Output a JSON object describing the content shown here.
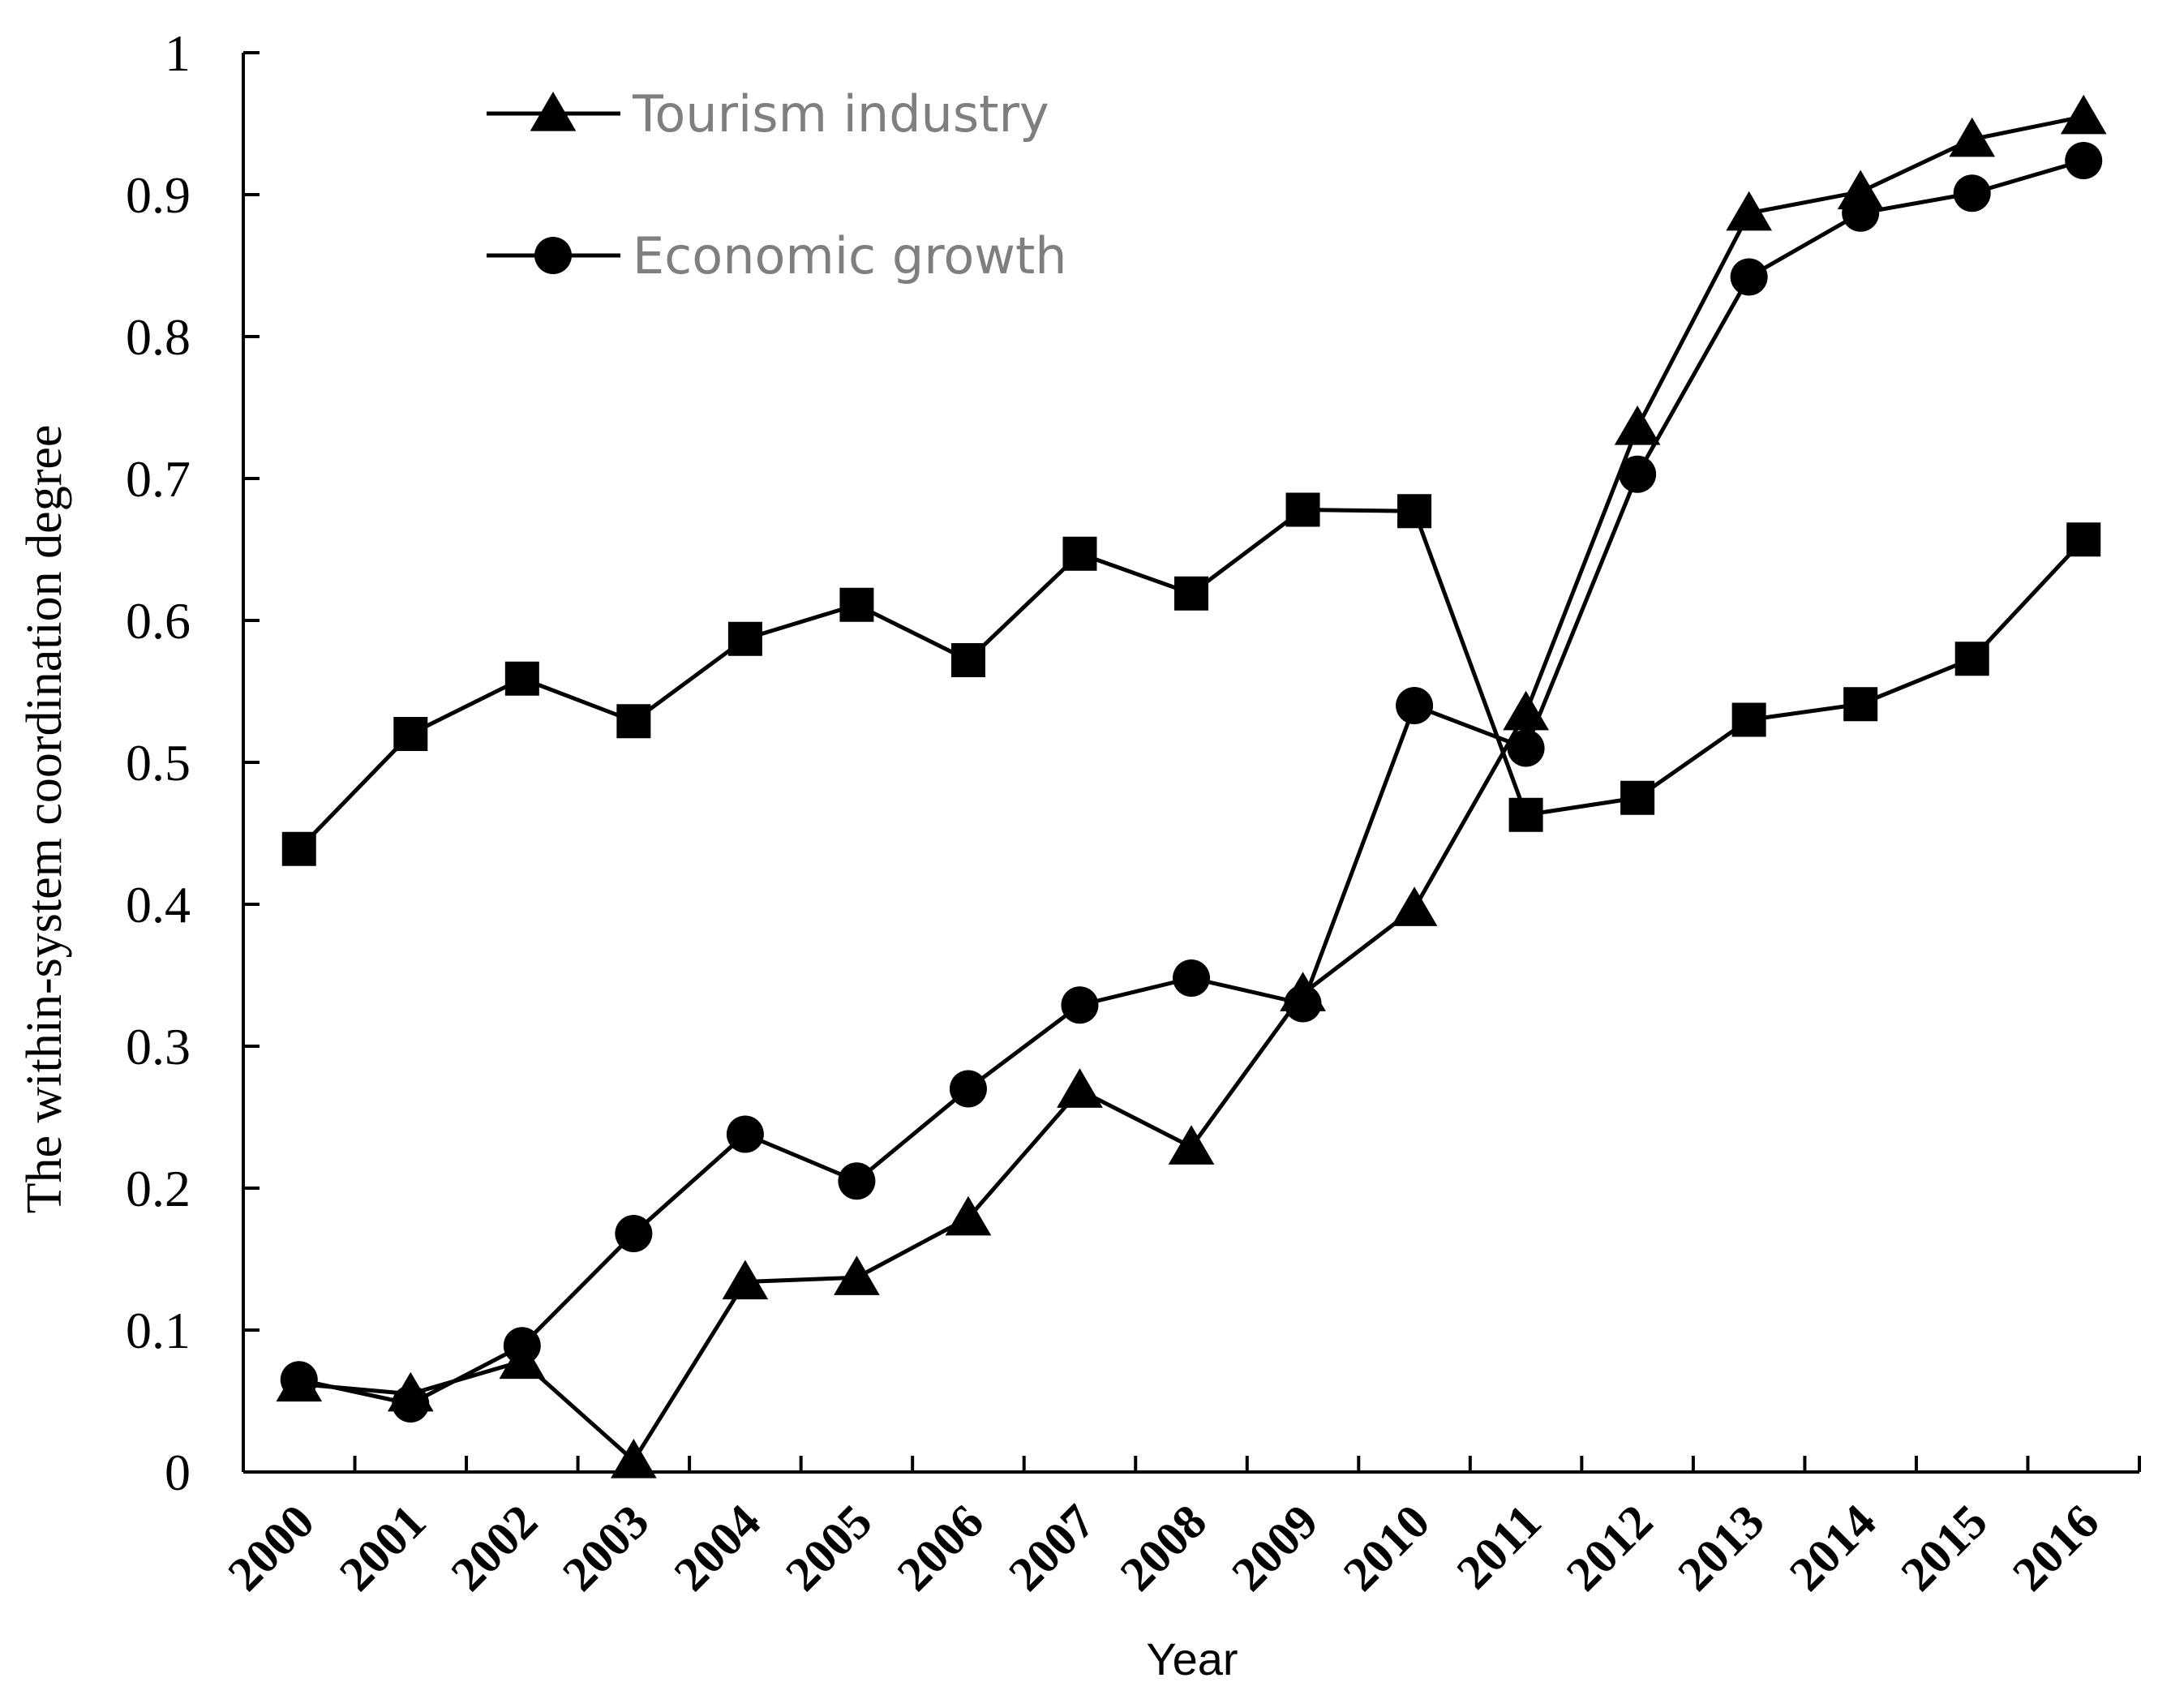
{
  "chart_data": {
    "type": "line",
    "title": "",
    "xlabel": "Year",
    "ylabel": "The within-system coordination degree",
    "ylim": [
      0,
      1
    ],
    "yticks": [
      "0",
      "0.1",
      "0.2",
      "0.3",
      "0.4",
      "0.5",
      "0.6",
      "0.7",
      "0.8",
      "0.9",
      "1"
    ],
    "categories": [
      "2000",
      "2001",
      "2002",
      "2003",
      "2004",
      "2005",
      "2006",
      "2007",
      "2008",
      "2009",
      "2010",
      "2011",
      "2012",
      "2013",
      "2014",
      "2015",
      "2016"
    ],
    "legend_position": "top-left",
    "series": [
      {
        "name": "Tourism industry",
        "marker": "triangle",
        "in_legend": true,
        "values": [
          0.062,
          0.055,
          0.078,
          0.008,
          0.134,
          0.137,
          0.179,
          0.269,
          0.229,
          0.337,
          0.397,
          0.535,
          0.736,
          0.887,
          0.902,
          0.939,
          0.955
        ]
      },
      {
        "name": "Economic growth",
        "marker": "circle",
        "in_legend": true,
        "values": [
          0.065,
          0.048,
          0.089,
          0.168,
          0.238,
          0.205,
          0.27,
          0.329,
          0.348,
          0.33,
          0.54,
          0.51,
          0.703,
          0.842,
          0.887,
          0.901,
          0.924
        ]
      },
      {
        "name": "",
        "marker": "square",
        "in_legend": false,
        "values": [
          0.439,
          0.52,
          0.559,
          0.529,
          0.587,
          0.611,
          0.572,
          0.647,
          0.619,
          0.678,
          0.677,
          0.463,
          0.475,
          0.53,
          0.541,
          0.573,
          0.657
        ]
      }
    ],
    "colors": {
      "line": "#000000",
      "legend_text": "#7f7f7f"
    }
  }
}
